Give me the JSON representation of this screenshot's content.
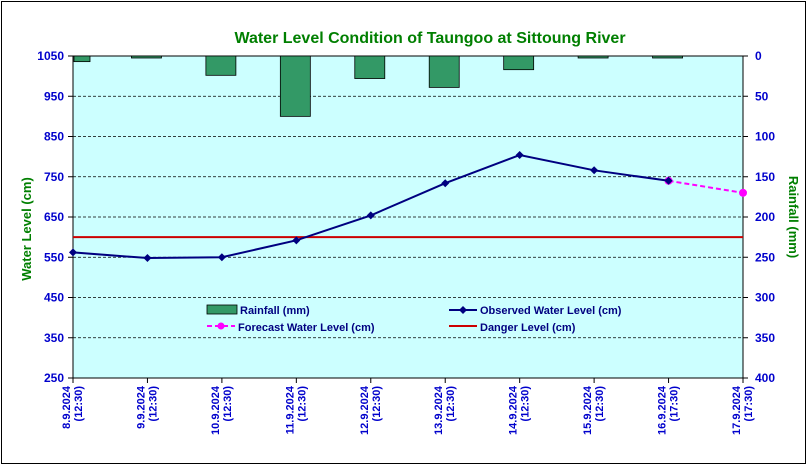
{
  "chart_data": {
    "type": "line",
    "title": "Water Level Condition of Taungoo at  Sittoung River",
    "ylabel": "Water Level (cm)",
    "y2label": "Rainfall (mm)",
    "ylim": [
      250,
      1050
    ],
    "y2lim": [
      0,
      400
    ],
    "y2_inverted": true,
    "yticks": [
      "1050",
      "950",
      "850",
      "750",
      "650",
      "550",
      "450",
      "350",
      "250"
    ],
    "y2ticks": [
      "0",
      "50",
      "100",
      "150",
      "200",
      "250",
      "300",
      "350",
      "400"
    ],
    "grid": true,
    "legend_position": "inside-lower-center",
    "categories": [
      [
        "8.9.2024",
        "(12:30)"
      ],
      [
        "9.9.2024",
        "(12:30)"
      ],
      [
        "10.9.2024",
        "(12:30)"
      ],
      [
        "11.9.2024",
        "(12:30)"
      ],
      [
        "12.9.2024",
        "(12:30)"
      ],
      [
        "13.9.2024",
        "(12:30)"
      ],
      [
        "14.9.2024",
        "(12:30)"
      ],
      [
        "15.9.2024",
        "(12:30)"
      ],
      [
        "16.9.2024",
        "(17:30)"
      ],
      [
        "17.9.2024",
        "(17:30)"
      ]
    ],
    "series": [
      {
        "name": "Rainfall (mm)",
        "kind": "bar",
        "axis": "right",
        "color": "#339966",
        "values": [
          7,
          0,
          24,
          75,
          28,
          39,
          17,
          0,
          0,
          null
        ]
      },
      {
        "name": "Observed Water Level (cm)",
        "kind": "line",
        "axis": "left",
        "color": "#000080",
        "values": [
          562,
          548,
          550,
          592,
          654,
          734,
          804,
          766,
          740,
          null
        ]
      },
      {
        "name": "Forecast Water Level (cm)",
        "kind": "line",
        "axis": "left",
        "color": "#ff00ff",
        "dashed": true,
        "values": [
          null,
          null,
          null,
          null,
          null,
          null,
          null,
          null,
          740,
          710
        ]
      },
      {
        "name": "Danger Level (cm)",
        "kind": "line",
        "axis": "left",
        "color": "#cc0000",
        "values": [
          600,
          600,
          600,
          600,
          600,
          600,
          600,
          600,
          600,
          600
        ]
      }
    ],
    "colors": {
      "title": "#007f00",
      "axis_tick": "#0000cc",
      "plot_bg": "#ccffff",
      "axis_label": "#007f00"
    }
  }
}
